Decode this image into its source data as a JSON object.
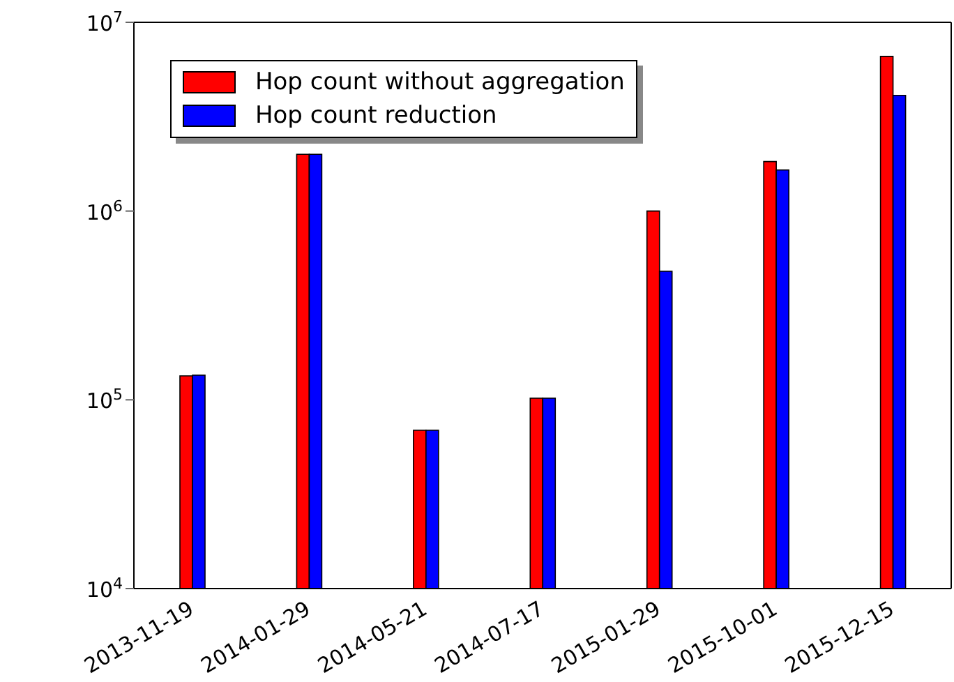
{
  "chart_data": {
    "type": "bar",
    "log": "y",
    "categories": [
      "2013-11-19",
      "2014-01-29",
      "2014-05-21",
      "2014-07-17",
      "2015-01-29",
      "2015-10-01",
      "2015-12-15"
    ],
    "series": [
      {
        "name": "Hop count without aggregation",
        "color": "#ff0000",
        "values": [
          134000,
          2000000,
          69000,
          102000,
          1000000,
          1830000,
          6600000
        ]
      },
      {
        "name": "Hop count reduction",
        "color": "#0000ff",
        "values": [
          135000,
          2000000,
          69000,
          102000,
          480000,
          1650000,
          4100000
        ]
      }
    ],
    "ylim": [
      10000,
      10000000
    ],
    "yticks": [
      {
        "value": 10000,
        "label": "10$^{4}$"
      },
      {
        "value": 100000,
        "label": "10$^{5}$"
      },
      {
        "value": 1000000,
        "label": "10$^{6}$"
      },
      {
        "value": 10000000,
        "label": "10$^{7}$"
      }
    ],
    "grid": false,
    "legend": "top left"
  }
}
